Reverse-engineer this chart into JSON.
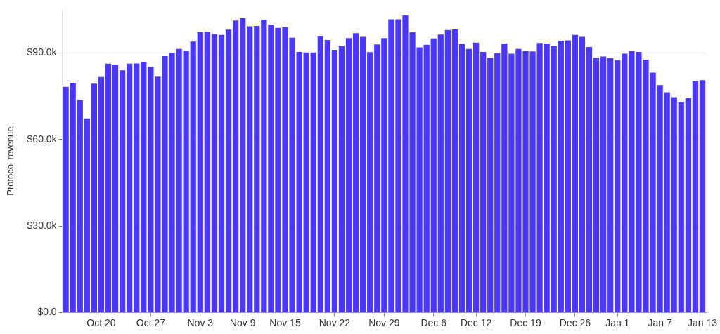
{
  "chart_data": {
    "type": "bar",
    "ylabel": "Protocol revenue",
    "categories": [
      null,
      null,
      null,
      null,
      null,
      "Oct 20",
      null,
      null,
      null,
      null,
      null,
      null,
      "Oct 27",
      null,
      null,
      null,
      null,
      null,
      null,
      "Nov 3",
      null,
      null,
      null,
      null,
      null,
      "Nov 9",
      null,
      null,
      null,
      null,
      null,
      "Nov 15",
      null,
      null,
      null,
      null,
      null,
      null,
      "Nov 22",
      null,
      null,
      null,
      null,
      null,
      null,
      "Nov 29",
      null,
      null,
      null,
      null,
      null,
      null,
      "Dec 6",
      null,
      null,
      null,
      null,
      null,
      "Dec 12",
      null,
      null,
      null,
      null,
      null,
      null,
      "Dec 19",
      null,
      null,
      null,
      null,
      null,
      null,
      "Dec 26",
      null,
      null,
      null,
      null,
      null,
      "Jan 1",
      null,
      null,
      null,
      null,
      null,
      "Jan 7",
      null,
      null,
      null,
      null,
      null,
      "Jan 13"
    ],
    "values": [
      78300,
      79700,
      73800,
      67300,
      79400,
      81700,
      86300,
      86000,
      84000,
      86300,
      86400,
      87000,
      85200,
      81800,
      88900,
      90100,
      91400,
      90800,
      94000,
      97200,
      97300,
      96600,
      96300,
      98100,
      101300,
      102100,
      99300,
      99400,
      101500,
      99800,
      98700,
      99000,
      95300,
      90400,
      90200,
      90200,
      96000,
      94500,
      91100,
      92400,
      95200,
      96900,
      95600,
      90300,
      93000,
      95200,
      101700,
      101700,
      103100,
      97200,
      92000,
      92900,
      95100,
      96400,
      98000,
      98200,
      93200,
      91400,
      93600,
      90400,
      88300,
      89900,
      93300,
      89800,
      91400,
      90700,
      90600,
      93500,
      93300,
      92400,
      94300,
      94400,
      96300,
      95600,
      92100,
      88400,
      88800,
      88200,
      87500,
      89800,
      90700,
      90400,
      87700,
      83200,
      78900,
      76400,
      74700,
      72900,
      74300,
      80300,
      80600
    ],
    "color": "#4b38ff",
    "ylim": [
      0,
      105000
    ],
    "yticks": [
      {
        "value": 0,
        "label": "$0.0"
      },
      {
        "value": 30000,
        "label": "$30.0k"
      },
      {
        "value": 60000,
        "label": "$60.0k"
      },
      {
        "value": 90000,
        "label": "$90.0k"
      }
    ],
    "grid": "y"
  }
}
